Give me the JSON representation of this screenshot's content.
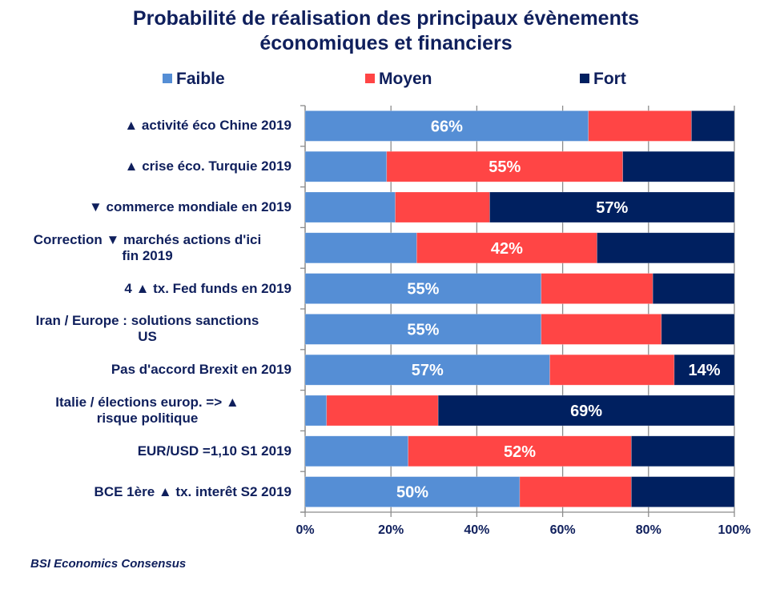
{
  "chart_data": {
    "type": "bar",
    "orientation": "horizontal",
    "stacked": "percent",
    "title": "Probabilité de réalisation des principaux évènements économiques et financiers",
    "title_lines": [
      "Probabilité de réalisation des principaux évènements",
      "économiques et financiers"
    ],
    "xlabel": "",
    "ylabel": "",
    "xlim": [
      0,
      100
    ],
    "x_ticks": [
      "0%",
      "20%",
      "40%",
      "60%",
      "80%",
      "100%"
    ],
    "grid": true,
    "legend_position": "top",
    "categories": [
      "▲ activité éco Chine 2019",
      "▲ crise éco. Turquie 2019",
      "▼ commerce mondiale en 2019",
      "Correction ▼ marchés actions d'ici fin 2019",
      "4 ▲ tx. Fed funds en 2019",
      "Iran / Europe : solutions sanctions US",
      "Pas d'accord Brexit en 2019",
      "Italie / élections europ.  => ▲ risque politique",
      "EUR/USD =1,10 S1 2019",
      "BCE 1ère ▲ tx. interêt S2 2019"
    ],
    "category_lines": [
      [
        "▲ activité éco Chine 2019"
      ],
      [
        "▲ crise éco. Turquie 2019"
      ],
      [
        "▼ commerce mondiale en 2019"
      ],
      [
        "Correction ▼ marchés actions d'ici",
        "fin 2019"
      ],
      [
        "4 ▲ tx. Fed funds en 2019"
      ],
      [
        "Iran / Europe : solutions sanctions",
        "US"
      ],
      [
        "Pas d'accord Brexit en 2019"
      ],
      [
        "Italie / élections europ.  => ▲",
        "risque politique"
      ],
      [
        "EUR/USD =1,10 S1 2019"
      ],
      [
        "BCE 1ère ▲ tx. interêt S2 2019"
      ]
    ],
    "series": [
      {
        "name": "Faible",
        "color": "#558ed5",
        "values": [
          66,
          19,
          21,
          26,
          55,
          55,
          57,
          5,
          24,
          50
        ]
      },
      {
        "name": "Moyen",
        "color": "#ff4545",
        "values": [
          24,
          55,
          22,
          42,
          26,
          28,
          29,
          26,
          52,
          26
        ]
      },
      {
        "name": "Fort",
        "color": "#002060",
        "values": [
          10,
          26,
          57,
          32,
          19,
          17,
          14,
          69,
          24,
          24
        ]
      }
    ],
    "data_labels": [
      {
        "category_index": 0,
        "series": "Faible",
        "text": "66%"
      },
      {
        "category_index": 1,
        "series": "Moyen",
        "text": "55%"
      },
      {
        "category_index": 2,
        "series": "Fort",
        "text": "57%"
      },
      {
        "category_index": 3,
        "series": "Moyen",
        "text": "42%"
      },
      {
        "category_index": 4,
        "series": "Faible",
        "text": "55%"
      },
      {
        "category_index": 5,
        "series": "Faible",
        "text": "55%"
      },
      {
        "category_index": 6,
        "series": "Faible",
        "text": "57%"
      },
      {
        "category_index": 6,
        "series": "Fort",
        "text": "14%"
      },
      {
        "category_index": 7,
        "series": "Fort",
        "text": "69%"
      },
      {
        "category_index": 8,
        "series": "Moyen",
        "text": "52%"
      },
      {
        "category_index": 9,
        "series": "Faible",
        "text": "50%"
      }
    ],
    "source": "BSI Economics Consensus"
  }
}
